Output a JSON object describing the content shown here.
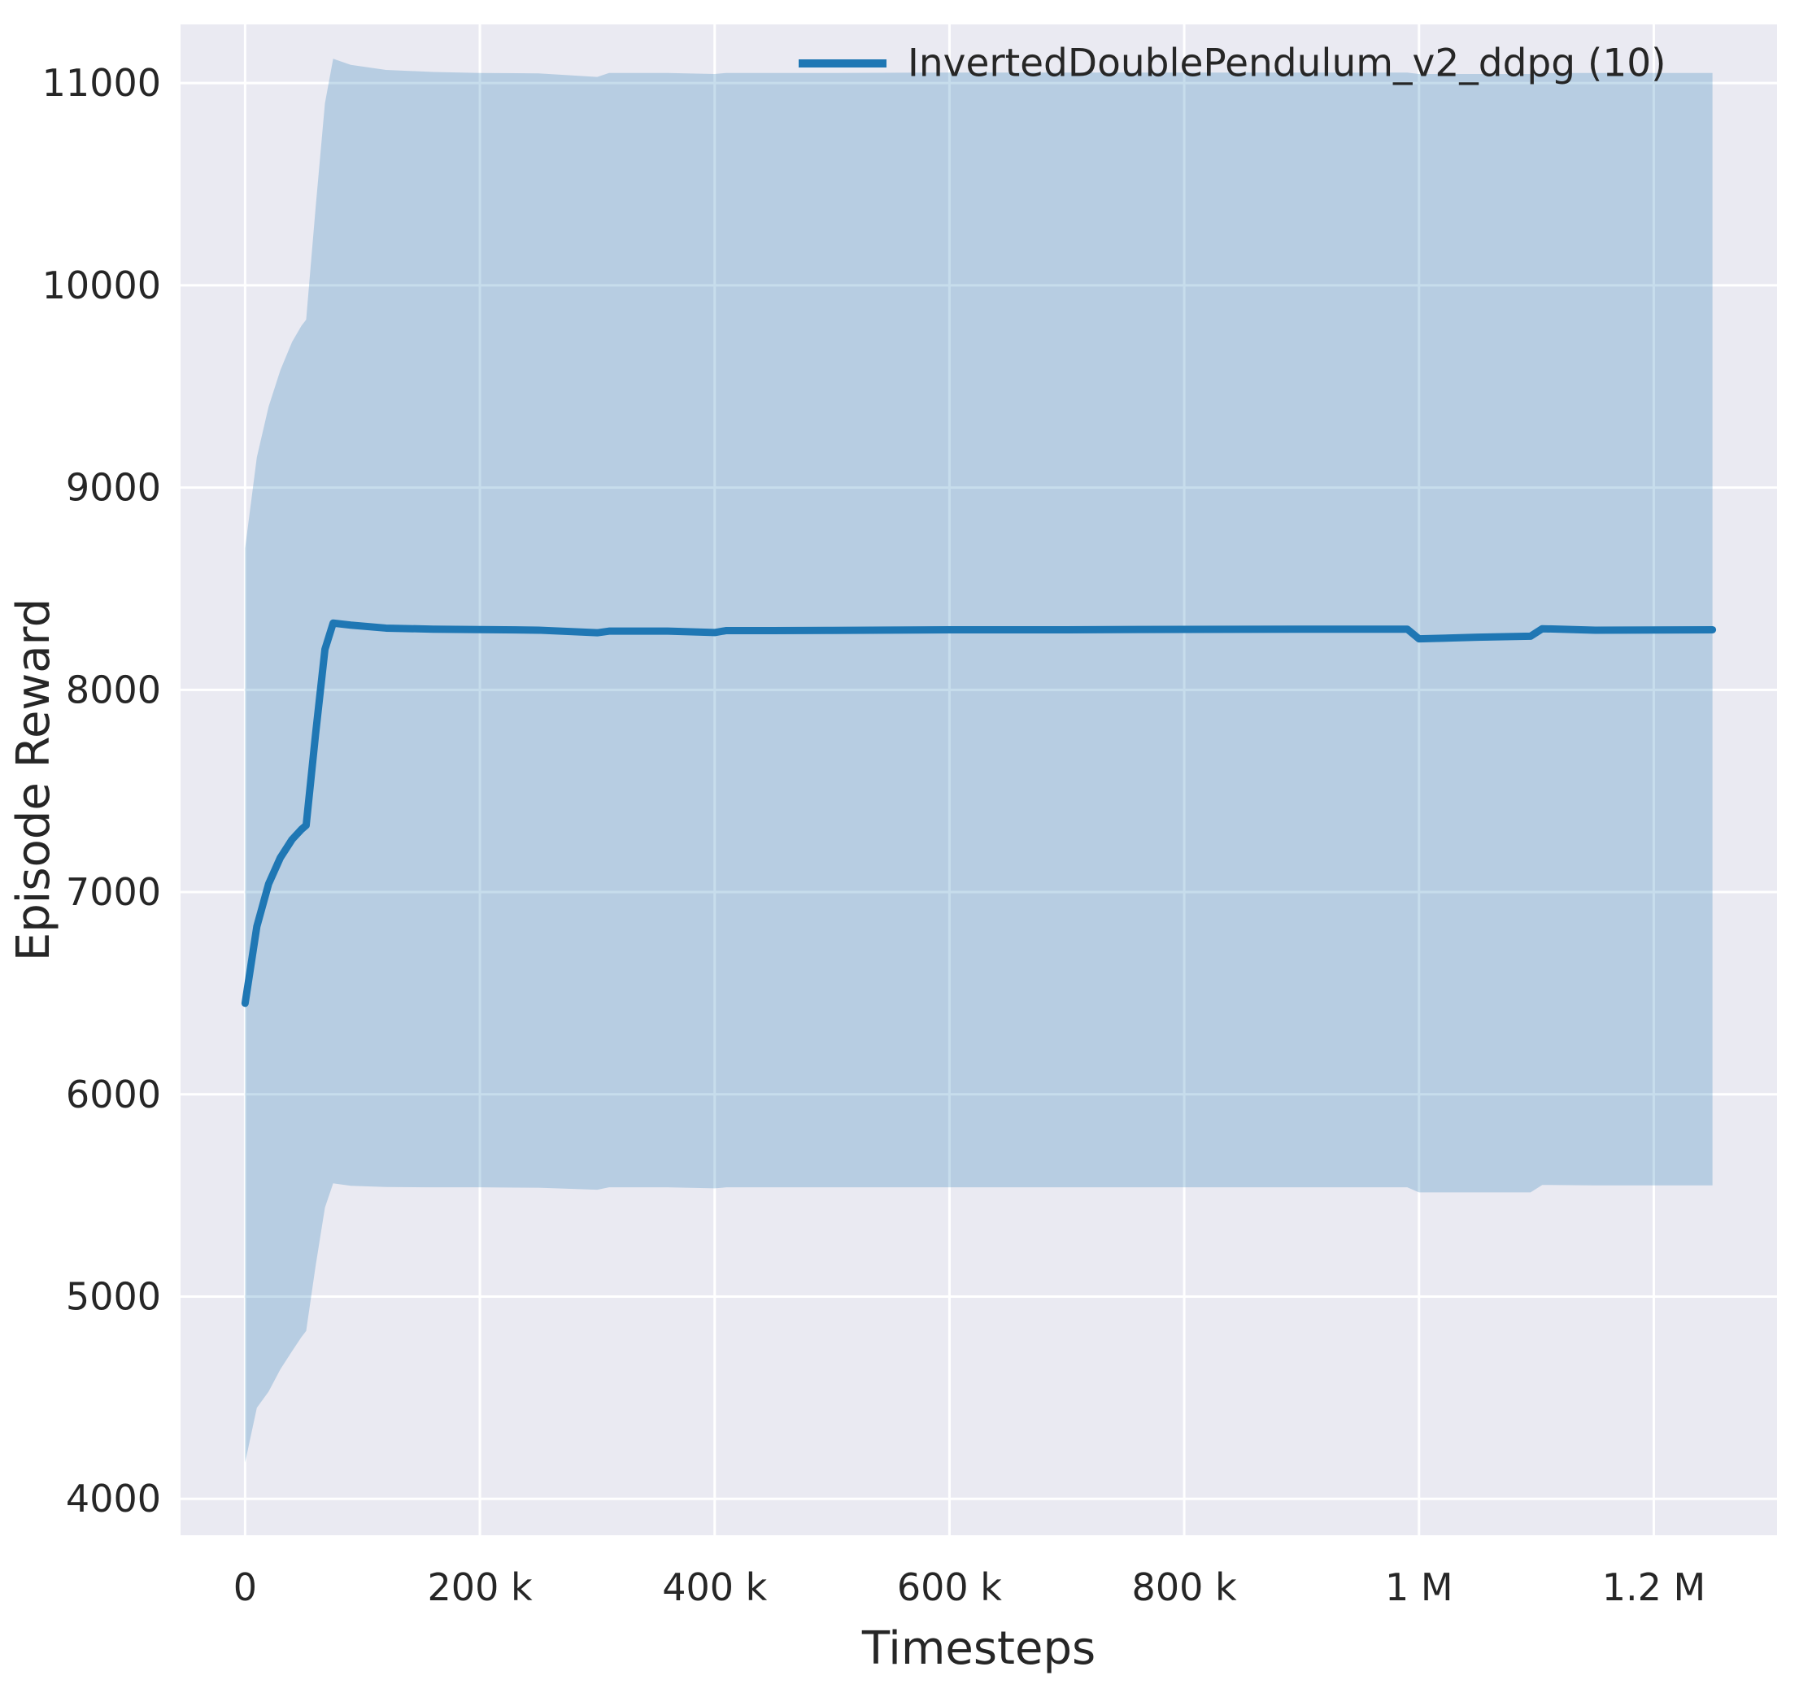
{
  "figure": {
    "background": "#ffffff",
    "plot_background": "#eaeaf2",
    "grid_color": "#ffffff",
    "text_color": "#262626",
    "accent_color": "#1f77b4"
  },
  "chart_data": {
    "type": "line",
    "title": "",
    "xlabel": "Timesteps",
    "ylabel": "Episode Reward",
    "xlim": [
      -55000,
      1305000
    ],
    "ylim": [
      3820,
      11290
    ],
    "grid": true,
    "legend_position": "upper center-right, inside axes, no frame",
    "x_ticks": [
      {
        "value": 0,
        "label": "0"
      },
      {
        "value": 200000,
        "label": "200 k"
      },
      {
        "value": 400000,
        "label": "400 k"
      },
      {
        "value": 600000,
        "label": "600 k"
      },
      {
        "value": 800000,
        "label": "800 k"
      },
      {
        "value": 1000000,
        "label": "1 M"
      },
      {
        "value": 1200000,
        "label": "1.2 M"
      }
    ],
    "y_ticks": [
      {
        "value": 4000,
        "label": "4000"
      },
      {
        "value": 5000,
        "label": "5000"
      },
      {
        "value": 6000,
        "label": "6000"
      },
      {
        "value": 7000,
        "label": "7000"
      },
      {
        "value": 8000,
        "label": "8000"
      },
      {
        "value": 9000,
        "label": "9000"
      },
      {
        "value": 10000,
        "label": "10000"
      },
      {
        "value": 11000,
        "label": "11000"
      }
    ],
    "series": [
      {
        "name": "InvertedDoublePendulum_v2_ddpg (10)",
        "color": "#1f77b4",
        "line_width": 9,
        "band_opacity": 0.25,
        "x": [
          0,
          10000,
          20000,
          30000,
          40000,
          48000,
          52000,
          60000,
          68000,
          75000,
          90000,
          120000,
          160000,
          200000,
          250000,
          300000,
          310000,
          360000,
          400000,
          410000,
          450000,
          500000,
          600000,
          700000,
          800000,
          900000,
          990000,
          1000000,
          1050000,
          1095000,
          1105000,
          1150000,
          1250000
        ],
        "mean": [
          6450,
          6830,
          7040,
          7170,
          7260,
          7310,
          7330,
          7780,
          8200,
          8330,
          8320,
          8305,
          8300,
          8298,
          8295,
          8282,
          8290,
          8290,
          8283,
          8293,
          8293,
          8294,
          8297,
          8297,
          8299,
          8300,
          8300,
          8252,
          8260,
          8265,
          8302,
          8295,
          8297
        ],
        "upper": [
          8700,
          9150,
          9400,
          9580,
          9720,
          9800,
          9830,
          10380,
          10900,
          11120,
          11090,
          11065,
          11055,
          11050,
          11048,
          11030,
          11050,
          11050,
          11045,
          11050,
          11050,
          11050,
          11052,
          11052,
          11052,
          11052,
          11052,
          11045,
          11045,
          11045,
          11050,
          11050,
          11050
        ],
        "lower": [
          4180,
          4450,
          4530,
          4640,
          4730,
          4800,
          4830,
          5150,
          5440,
          5560,
          5548,
          5542,
          5540,
          5540,
          5538,
          5528,
          5540,
          5540,
          5535,
          5540,
          5540,
          5540,
          5540,
          5540,
          5540,
          5540,
          5540,
          5515,
          5515,
          5515,
          5552,
          5550,
          5550
        ]
      }
    ]
  }
}
